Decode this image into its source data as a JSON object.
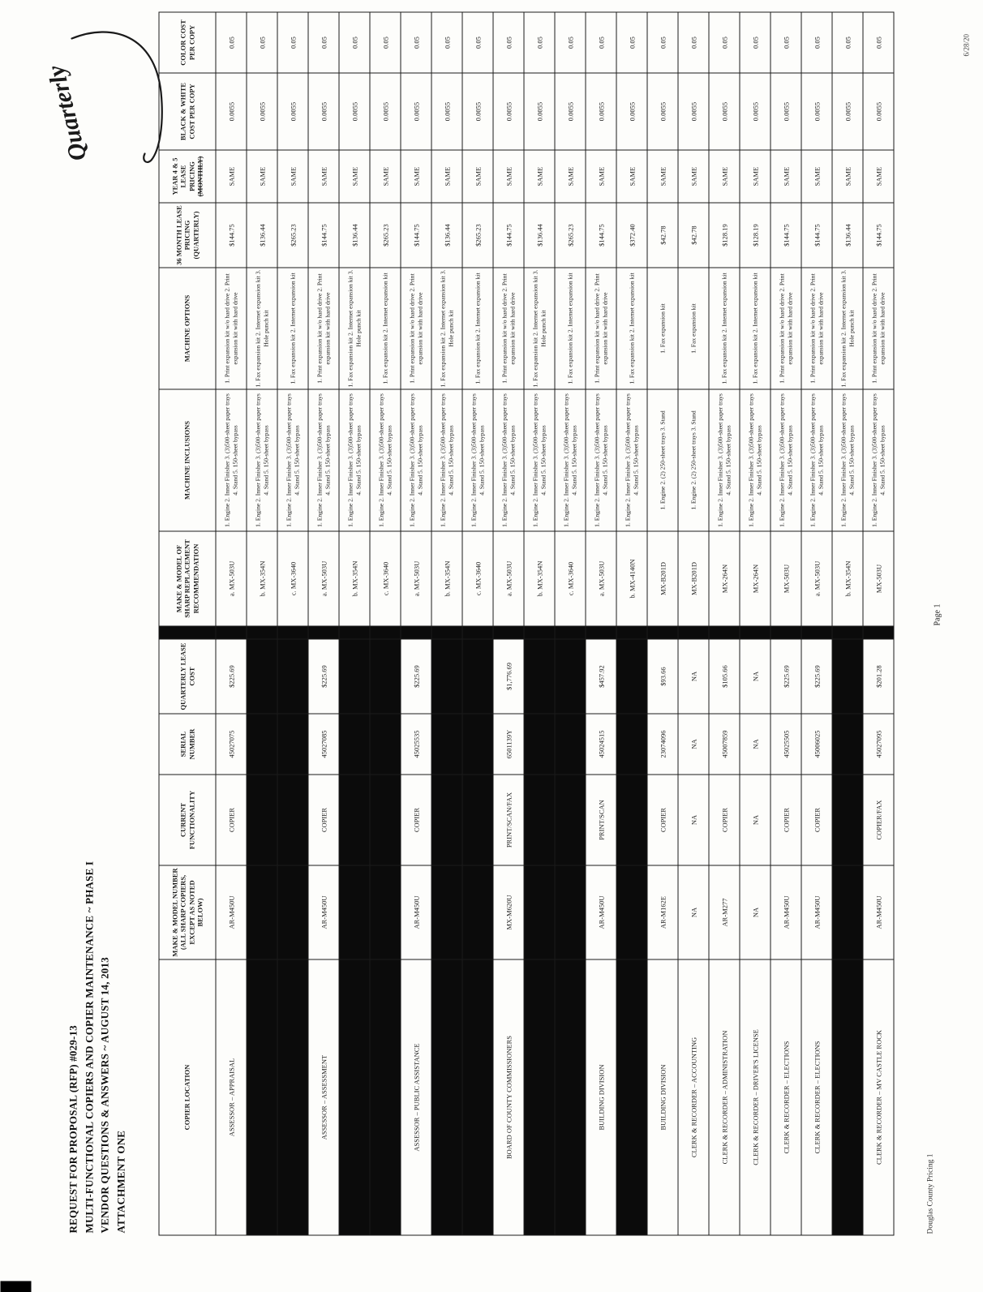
{
  "page": {
    "title_lines": [
      "REQUEST FOR PROPOSAL (RFP) #029-13",
      "MULTI-FUNCTIONAL COPIERS AND COPIER MAINTENANCE ~ PHASE I",
      "VENDOR QUESTIONS & ANSWERS ~ AUGUST 14, 2013",
      "ATTACHMENT ONE"
    ],
    "handwritten_annotation": "Quarterly",
    "footer_left": "Douglas County Pricing 1",
    "page_number": "Page 1",
    "date_stamp": "6/28/20"
  },
  "table": {
    "headers": [
      "COPIER LOCATION",
      "MAKE & MODEL NUMBER (ALL SHARP COPIERS, EXCEPT AS NOTED BELOW)",
      "CURRENT FUNCTIONALITY",
      "SERIAL NUMBER",
      "QUARTERLY LEASE COST",
      "MAKE & MODEL OF SHARP REPLACEMENT RECOMMENDATION",
      "MACHINE INCLUSIONS",
      "MACHINE OPTIONS",
      "36 MONTH LEASE PRICING (QUARTERLY)",
      "YEAR 4 & 5 LEASE PRICING (MONTHLY)",
      "BLACK & WHITE COST PER COPY",
      "COLOR COST PER COPY"
    ],
    "groups": [
      {
        "location": "ASSESSOR – APPRAISAL",
        "make_model": "AR-M450U",
        "functionality": "COPIER",
        "serial": "45027075",
        "quarterly_lease_cost": "$225.69",
        "rows": [
          {
            "replacement": "a. MX-503U",
            "inclusions": "1. Engine 2. Inner Finisher 3. (3)500-sheet paper trays 4. Stand 5. 150-sheet bypass",
            "options": "1. Print expansion kit w/o hard drive 2. Print expansion kit with hard drive",
            "lease_36_month": "$144.75",
            "year_4_5": "SAME",
            "bw_cost": "0.0055",
            "color_cost": "0.05"
          },
          {
            "replacement": "b. MX-354N",
            "inclusions": "1. Engine 2. Inner Finisher 3. (3)500-sheet paper trays 4. Stand 5. 150-sheet bypass",
            "options": "1. Fax expansion kit 2. Internet expansion kit 3. Hole punch kit",
            "lease_36_month": "$136.44",
            "year_4_5": "SAME",
            "bw_cost": "0.0055",
            "color_cost": "0.05"
          },
          {
            "replacement": "c. MX-3640",
            "inclusions": "1. Engine 2. Inner Finisher 3. (3)500-sheet paper trays 4. Stand 5. 150-sheet bypass",
            "options": "1. Fax expansion kit 2. Internet expansion kit",
            "lease_36_month": "$265.23",
            "year_4_5": "SAME",
            "bw_cost": "0.0055",
            "color_cost": "0.05"
          }
        ]
      },
      {
        "location": "ASSESSOR – ASSESSMENT",
        "make_model": "AR-M450U",
        "functionality": "COPIER",
        "serial": "45027085",
        "quarterly_lease_cost": "$225.69",
        "rows": [
          {
            "replacement": "a. MX-503U",
            "inclusions": "1. Engine 2. Inner Finisher 3. (3)500-sheet paper trays 4. Stand 5. 150-sheet bypass",
            "options": "1. Print expansion kit w/o hard drive 2. Print expansion kit with hard drive",
            "lease_36_month": "$144.75",
            "year_4_5": "SAME",
            "bw_cost": "0.0055",
            "color_cost": "0.05"
          },
          {
            "replacement": "b. MX-354N",
            "inclusions": "1. Engine 2. Inner Finisher 3. (3)500-sheet paper trays 4. Stand 5. 150-sheet bypass",
            "options": "1. Fax expansion kit 2. Internet expansion kit 3. Hole punch kit",
            "lease_36_month": "$136.44",
            "year_4_5": "SAME",
            "bw_cost": "0.0055",
            "color_cost": "0.05"
          },
          {
            "replacement": "c. MX-3640",
            "inclusions": "1. Engine 2. Inner Finisher 3. (3)500-sheet paper trays 4. Stand 5. 150-sheet bypass",
            "options": "1. Fax expansion kit 2. Internet expansion kit",
            "lease_36_month": "$265.23",
            "year_4_5": "SAME",
            "bw_cost": "0.0055",
            "color_cost": "0.05"
          }
        ]
      },
      {
        "location": "ASSESSOR – PUBLIC ASSISTANCE",
        "make_model": "AR-M450U",
        "functionality": "COPIER",
        "serial": "45025535",
        "quarterly_lease_cost": "$225.69",
        "rows": [
          {
            "replacement": "a. MX-503U",
            "inclusions": "1. Engine 2. Inner Finisher 3. (3)500-sheet paper trays 4. Stand 5. 150-sheet bypass",
            "options": "1. Print expansion kit w/o hard drive 2. Print expansion kit with hard drive",
            "lease_36_month": "$144.75",
            "year_4_5": "SAME",
            "bw_cost": "0.0055",
            "color_cost": "0.05"
          },
          {
            "replacement": "b. MX-354N",
            "inclusions": "1. Engine 2. Inner Finisher 3. (3)500-sheet paper trays 4. Stand 5. 150-sheet bypass",
            "options": "1. Fax expansion kit 2. Internet expansion kit 3. Hole punch kit",
            "lease_36_month": "$136.44",
            "year_4_5": "SAME",
            "bw_cost": "0.0055",
            "color_cost": "0.05"
          },
          {
            "replacement": "c. MX-3640",
            "inclusions": "1. Engine 2. Inner Finisher 3. (3)500-sheet paper trays 4. Stand 5. 150-sheet bypass",
            "options": "1. Fax expansion kit 2. Internet expansion kit",
            "lease_36_month": "$265.23",
            "year_4_5": "SAME",
            "bw_cost": "0.0055",
            "color_cost": "0.05"
          }
        ]
      },
      {
        "location": "BOARD OF COUNTY COMMISSIONERS",
        "make_model": "MX-M620U",
        "functionality": "PRINT/SCAN/FAX",
        "serial": "6501139Y",
        "quarterly_lease_cost": "$1,776.69",
        "rows": [
          {
            "replacement": "a. MX-503U",
            "inclusions": "1. Engine 2. Inner Finisher 3. (3)500-sheet paper trays 4. Stand 5. 150-sheet bypass",
            "options": "1. Print expansion kit w/o hard drive 2. Print expansion kit with hard drive",
            "lease_36_month": "$144.75",
            "year_4_5": "SAME",
            "bw_cost": "0.0055",
            "color_cost": "0.05"
          },
          {
            "replacement": "b. MX-354N",
            "inclusions": "1. Engine 2. Inner Finisher 3. (3)500-sheet paper trays 4. Stand 5. 150-sheet bypass",
            "options": "1. Fax expansion kit 2. Internet expansion kit 3. Hole punch kit",
            "lease_36_month": "$136.44",
            "year_4_5": "SAME",
            "bw_cost": "0.0055",
            "color_cost": "0.05"
          },
          {
            "replacement": "c. MX-3640",
            "inclusions": "1. Engine 2. Inner Finisher 3. (3)500-sheet paper trays 4. Stand 5. 150-sheet bypass",
            "options": "1. Fax expansion kit 2. Internet expansion kit",
            "lease_36_month": "$265.23",
            "year_4_5": "SAME",
            "bw_cost": "0.0055",
            "color_cost": "0.05"
          }
        ]
      },
      {
        "location": "BUILDING DIVISION",
        "make_model": "AR-M450U",
        "functionality": "PRINT/SCAN",
        "serial": "45024515",
        "quarterly_lease_cost": "$457.92",
        "rows": [
          {
            "replacement": "a. MX-503U",
            "inclusions": "1. Engine 2. Inner Finisher 3. (3)500-sheet paper trays 4. Stand 5. 150-sheet bypass",
            "options": "1. Print expansion kit w/o hard drive 2. Print expansion kit with hard drive",
            "lease_36_month": "$144.75",
            "year_4_5": "SAME",
            "bw_cost": "0.0055",
            "color_cost": "0.05"
          },
          {
            "replacement": "b. MX-4140N",
            "inclusions": "1. Engine 2. Inner Finisher 3. (3)500-sheet paper trays 4. Stand 5. 150-sheet bypass",
            "options": "1. Fax expansion kit 2. Internet expansion kit",
            "lease_36_month": "$372.40",
            "year_4_5": "SAME",
            "bw_cost": "0.0055",
            "color_cost": "0.05"
          }
        ]
      },
      {
        "location": "BUILDING DIVISION",
        "make_model": "AR-M162E",
        "functionality": "COPIER",
        "serial": "23074096",
        "quarterly_lease_cost": "$93.66",
        "rows": [
          {
            "replacement": "MX-B201D",
            "inclusions": "1. Engine 2. (2) 250-sheet trays 3. Stand",
            "options": "1. Fax expansion kit",
            "lease_36_month": "$42.78",
            "year_4_5": "SAME",
            "bw_cost": "0.0055",
            "color_cost": "0.05"
          }
        ]
      },
      {
        "location": "CLERK & RECORDER – ACCOUNTING",
        "make_model": "NA",
        "functionality": "NA",
        "serial": "NA",
        "quarterly_lease_cost": "NA",
        "rows": [
          {
            "replacement": "MX-B201D",
            "inclusions": "1. Engine 2. (2) 250-sheet trays 3. Stand",
            "options": "1. Fax expansion kit",
            "lease_36_month": "$42.78",
            "year_4_5": "SAME",
            "bw_cost": "0.0055",
            "color_cost": "0.05"
          }
        ]
      },
      {
        "location": "CLERK & RECORDER – ADMINISTRATION",
        "make_model": "AR-M277",
        "functionality": "COPIER",
        "serial": "45007859",
        "quarterly_lease_cost": "$105.66",
        "rows": [
          {
            "replacement": "MX-264N",
            "inclusions": "1. Engine 2. Inner Finisher 3. (3)500-sheet paper trays 4. Stand 5. 150-sheet bypass",
            "options": "1. Fax expansion kit 2. Internet expansion kit",
            "lease_36_month": "$128.19",
            "year_4_5": "SAME",
            "bw_cost": "0.0055",
            "color_cost": "0.05"
          }
        ]
      },
      {
        "location": "CLERK & RECORDER – DRIVER'S LICENSE",
        "make_model": "NA",
        "functionality": "NA",
        "serial": "NA",
        "quarterly_lease_cost": "NA",
        "rows": [
          {
            "replacement": "MX-264N",
            "inclusions": "1. Engine 2. Inner Finisher 3. (3)500-sheet paper trays 4. Stand 5. 150-sheet bypass",
            "options": "1. Fax expansion kit 2. Internet expansion kit",
            "lease_36_month": "$128.19",
            "year_4_5": "SAME",
            "bw_cost": "0.0055",
            "color_cost": "0.05"
          }
        ]
      },
      {
        "location": "CLERK & RECORDER – ELECTIONS",
        "make_model": "AR-M450U",
        "functionality": "COPIER",
        "serial": "45025505",
        "quarterly_lease_cost": "$225.69",
        "rows": [
          {
            "replacement": "MX-503U",
            "inclusions": "1. Engine 2. Inner Finisher 3. (3)500-sheet paper trays 4. Stand 5. 150-sheet bypass",
            "options": "1. Print expansion kit w/o hard drive 2. Print expansion kit with hard drive",
            "lease_36_month": "$144.75",
            "year_4_5": "SAME",
            "bw_cost": "0.0055",
            "color_cost": "0.05"
          }
        ]
      },
      {
        "location": "CLERK & RECORDER – ELECTIONS",
        "make_model": "AR-M450U",
        "functionality": "COPIER",
        "serial": "45006025",
        "quarterly_lease_cost": "$225.69",
        "rows": [
          {
            "replacement": "a. MX-503U",
            "inclusions": "1. Engine 2. Inner Finisher 3. (3)500-sheet paper trays 4. Stand 5. 150-sheet bypass",
            "options": "1. Print expansion kit w/o hard drive 2. Print expansion kit with hard drive",
            "lease_36_month": "$144.75",
            "year_4_5": "SAME",
            "bw_cost": "0.0055",
            "color_cost": "0.05"
          },
          {
            "replacement": "b. MX-354N",
            "inclusions": "1. Engine 2. Inner Finisher 3. (3)500-sheet paper trays 4. Stand 5. 150-sheet bypass",
            "options": "1. Fax expansion kit 2. Internet expansion kit 3. Hole punch kit",
            "lease_36_month": "$136.44",
            "year_4_5": "SAME",
            "bw_cost": "0.0055",
            "color_cost": "0.05"
          }
        ]
      },
      {
        "location": "CLERK & RECORDER – MV CASTLE ROCK",
        "make_model": "AR-M450U",
        "functionality": "COPIER/FAX",
        "serial": "45027095",
        "quarterly_lease_cost": "$201.28",
        "rows": [
          {
            "replacement": "MX-503U",
            "inclusions": "1. Engine 2. Inner Finisher 3. (3)500-sheet paper trays 4. Stand 5. 150-sheet bypass",
            "options": "1. Print expansion kit w/o hard drive 2. Print expansion kit with hard drive",
            "lease_36_month": "$144.75",
            "year_4_5": "SAME",
            "bw_cost": "0.0055",
            "color_cost": "0.05"
          }
        ]
      }
    ]
  }
}
